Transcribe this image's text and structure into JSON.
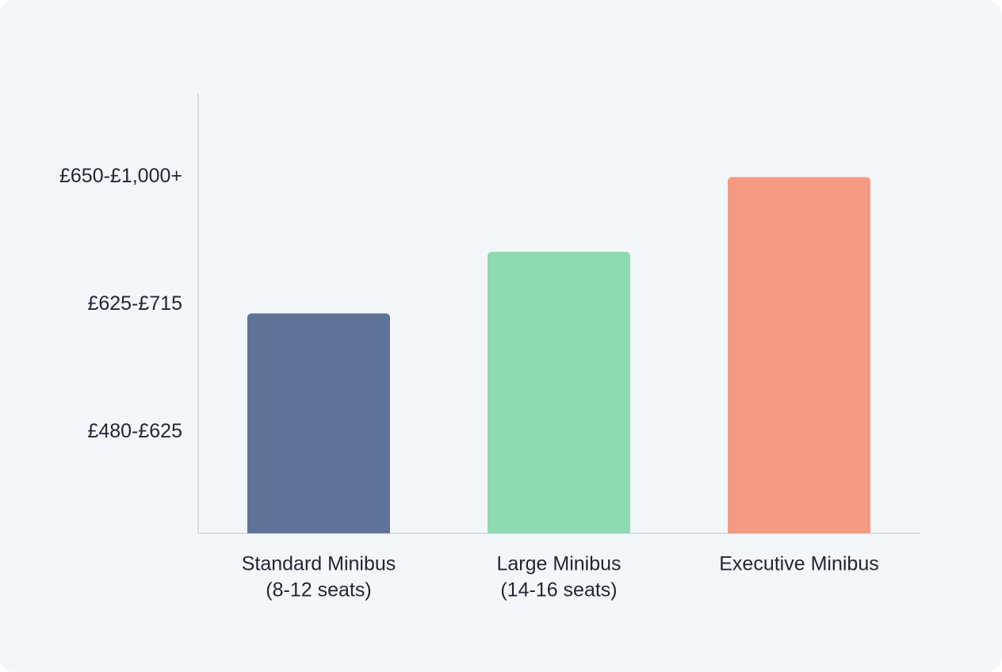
{
  "chart_data": {
    "type": "bar",
    "categories": [
      [
        "Standard Minibus",
        "(8-12 seats)"
      ],
      [
        "Large Minibus",
        "(14-16 seats)"
      ],
      [
        "Executive Minibus"
      ]
    ],
    "series": [
      {
        "colors": [
          "#5f7399",
          "#8cdab0",
          "#f59a82"
        ],
        "values": [
          50,
          64,
          81
        ]
      }
    ],
    "ylim": [
      0,
      100
    ],
    "yticks": [
      {
        "value": 23,
        "label": "£480-£625"
      },
      {
        "value": 52,
        "label": "£625-£715"
      },
      {
        "value": 81,
        "label": "£650-£1,000+"
      }
    ],
    "grid": false
  }
}
